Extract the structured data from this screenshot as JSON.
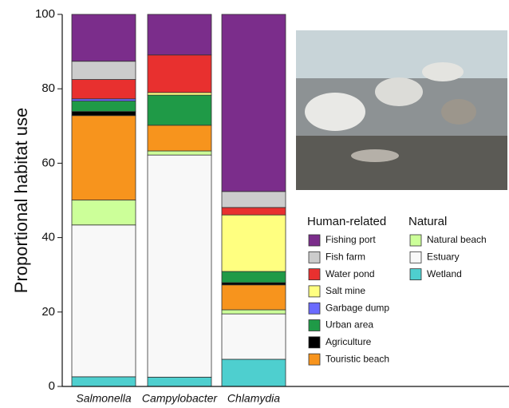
{
  "chart_data": {
    "type": "stacked_bar",
    "y_label": "Proportional habitat use",
    "categories": [
      "Salmonella",
      "Campylobacter",
      "Chlamydia"
    ],
    "ylim": [
      0,
      100
    ],
    "yticks": [
      0,
      20,
      40,
      60,
      80,
      100
    ],
    "legend_groups": [
      "Human-related",
      "Natural"
    ],
    "series": [
      {
        "name": "Wetland",
        "color": "#4ecfcf",
        "group": 1,
        "values": [
          2.6,
          2.5,
          7.3
        ]
      },
      {
        "name": "Estuary",
        "color": "#f8f8f8",
        "group": 1,
        "values": [
          40.8,
          59.7,
          12.2
        ]
      },
      {
        "name": "Natural beach",
        "color": "#ccff99",
        "group": 1,
        "values": [
          6.7,
          1.1,
          1.1
        ]
      },
      {
        "name": "Touristic beach",
        "color": "#f7941d",
        "group": 0,
        "values": [
          22.7,
          6.9,
          6.7
        ]
      },
      {
        "name": "Agriculture",
        "color": "#000000",
        "group": 0,
        "values": [
          1.1,
          0,
          0.6
        ]
      },
      {
        "name": "Urban area",
        "color": "#1f9a47",
        "group": 0,
        "values": [
          2.8,
          8.1,
          3.0
        ]
      },
      {
        "name": "Garbage dump",
        "color": "#6b6bff",
        "group": 0,
        "values": [
          0.6,
          0,
          0
        ]
      },
      {
        "name": "Salt mine",
        "color": "#ffff80",
        "group": 0,
        "values": [
          0,
          0.7,
          15.2
        ]
      },
      {
        "name": "Water pond",
        "color": "#e8302f",
        "group": 0,
        "values": [
          5.2,
          10.1,
          2.0
        ]
      },
      {
        "name": "Fish farm",
        "color": "#cccccc",
        "group": 0,
        "values": [
          4.9,
          0,
          4.3
        ]
      },
      {
        "name": "Fishing port",
        "color": "#7b2d8b",
        "group": 0,
        "values": [
          12.6,
          10.9,
          47.6
        ]
      }
    ]
  }
}
